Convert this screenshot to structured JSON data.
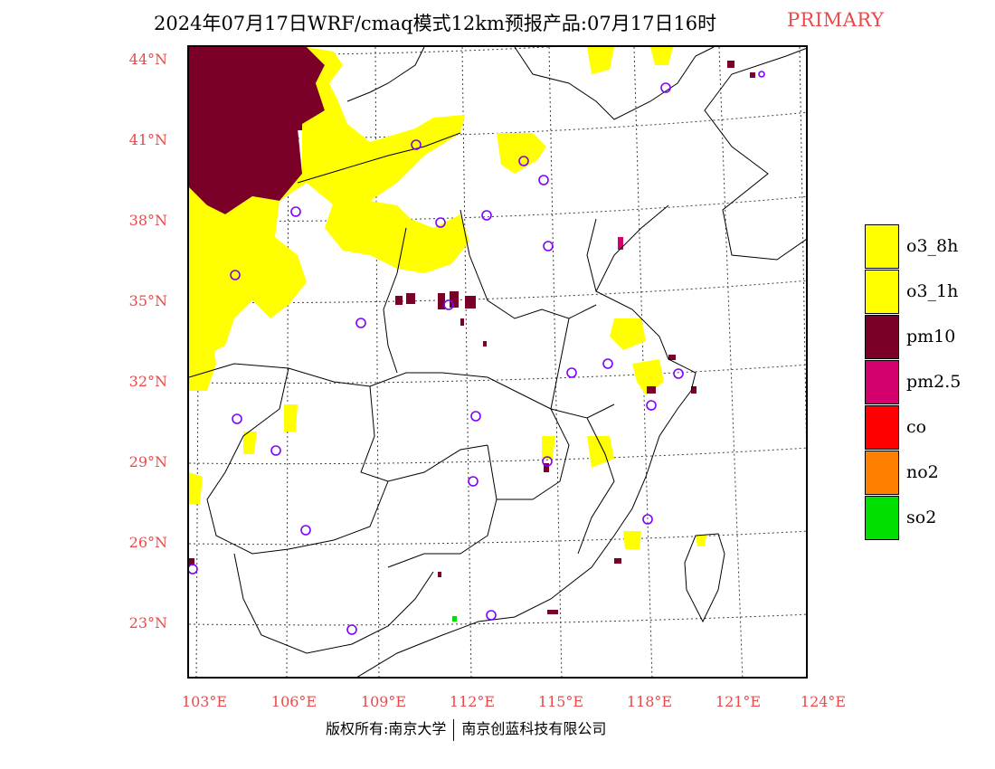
{
  "title": {
    "main": "2024年07月17日WRF/cmaq模式12km预报产品:07月17日16时",
    "tag": "PRIMARY"
  },
  "axes": {
    "lat_labels": [
      "44°N",
      "41°N",
      "38°N",
      "35°N",
      "32°N",
      "29°N",
      "26°N",
      "23°N"
    ],
    "lon_labels": [
      "103°E",
      "106°E",
      "109°E",
      "112°E",
      "115°E",
      "118°E",
      "121°E",
      "124°E"
    ]
  },
  "legend": {
    "items": [
      {
        "label": "o3_8h",
        "color": "#ffff00"
      },
      {
        "label": "o3_1h",
        "color": "#ffff00"
      },
      {
        "label": "pm10",
        "color": "#7a0028"
      },
      {
        "label": "pm2.5",
        "color": "#d4006e"
      },
      {
        "label": "co",
        "color": "#ff0000"
      },
      {
        "label": "no2",
        "color": "#ff7f00"
      },
      {
        "label": "so2",
        "color": "#00e000"
      }
    ]
  },
  "footer": {
    "left": "版权所有:南京大学",
    "right": "南京创蓝科技有限公司"
  },
  "colors": {
    "label_red": "#e84a4a",
    "o3": "#ffff00",
    "pm10": "#7a0028",
    "station_circle": "#8000ff"
  }
}
